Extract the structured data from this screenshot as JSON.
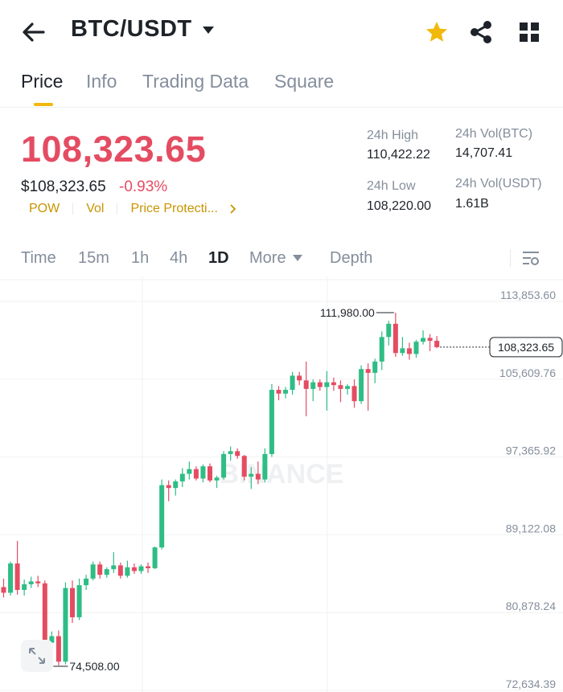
{
  "header": {
    "pair": "BTC/USDT",
    "back_icon": "arrow-left-icon",
    "star_icon": "star-icon",
    "share_icon": "share-icon",
    "grid_icon": "grid-icon",
    "star_color": "#f0b90b"
  },
  "tabs": [
    {
      "label": "Price",
      "active": true
    },
    {
      "label": "Info",
      "active": false
    },
    {
      "label": "Trading Data",
      "active": false
    },
    {
      "label": "Square",
      "active": false
    }
  ],
  "ticker": {
    "last_price": "108,323.65",
    "usd_price": "$108,323.65",
    "change_percent": "-0.93%",
    "tags": [
      "POW",
      "Vol",
      "Price Protecti..."
    ],
    "high_label": "24h High",
    "high_value": "110,422.22",
    "low_label": "24h Low",
    "low_value": "108,220.00",
    "vol_btc_label": "24h Vol(BTC)",
    "vol_btc_value": "14,707.41",
    "vol_usdt_label": "24h Vol(USDT)",
    "vol_usdt_value": "1.61B",
    "down_color": "#e44c62",
    "up_color": "#2ebd85",
    "accent_color": "#f0b90b"
  },
  "controls": {
    "intervals": [
      {
        "label": "Time",
        "active": false
      },
      {
        "label": "15m",
        "active": false
      },
      {
        "label": "1h",
        "active": false
      },
      {
        "label": "4h",
        "active": false
      },
      {
        "label": "1D",
        "active": true
      }
    ],
    "more_label": "More",
    "depth_label": "Depth"
  },
  "chart_data": {
    "type": "candlestick",
    "y_axis_labels": [
      "113,853.60",
      "105,609.76",
      "97,365.92",
      "89,122.08",
      "80,878.24",
      "72,634.39"
    ],
    "ylim": [
      72634.39,
      113853.6
    ],
    "high_marker": "111,980.00",
    "low_marker": "74,508.00",
    "current_price": "108,323.65",
    "current_value": 108323.65,
    "watermark": "BINANCE",
    "candles": [
      {
        "o": 82900,
        "h": 83800,
        "l": 81800,
        "c": 82300
      },
      {
        "o": 82300,
        "h": 85600,
        "l": 82000,
        "c": 85400
      },
      {
        "o": 85400,
        "h": 87800,
        "l": 82100,
        "c": 82600
      },
      {
        "o": 82600,
        "h": 83700,
        "l": 82000,
        "c": 83200
      },
      {
        "o": 83200,
        "h": 84000,
        "l": 82800,
        "c": 83500
      },
      {
        "o": 83500,
        "h": 84100,
        "l": 82900,
        "c": 83300
      },
      {
        "o": 83300,
        "h": 83600,
        "l": 76400,
        "c": 77000
      },
      {
        "o": 77000,
        "h": 78200,
        "l": 74508,
        "c": 77700
      },
      {
        "o": 77700,
        "h": 78300,
        "l": 74600,
        "c": 75000
      },
      {
        "o": 75000,
        "h": 83400,
        "l": 74700,
        "c": 82800
      },
      {
        "o": 82800,
        "h": 83600,
        "l": 79100,
        "c": 79700
      },
      {
        "o": 79700,
        "h": 83800,
        "l": 79400,
        "c": 83100
      },
      {
        "o": 83100,
        "h": 84200,
        "l": 82600,
        "c": 83800
      },
      {
        "o": 83800,
        "h": 85600,
        "l": 83600,
        "c": 85300
      },
      {
        "o": 85300,
        "h": 85600,
        "l": 83800,
        "c": 84200
      },
      {
        "o": 84200,
        "h": 85000,
        "l": 83900,
        "c": 84800
      },
      {
        "o": 84800,
        "h": 86600,
        "l": 84400,
        "c": 85200
      },
      {
        "o": 85200,
        "h": 85500,
        "l": 83800,
        "c": 84100
      },
      {
        "o": 84100,
        "h": 85700,
        "l": 83900,
        "c": 85000
      },
      {
        "o": 85000,
        "h": 85400,
        "l": 84300,
        "c": 84600
      },
      {
        "o": 84600,
        "h": 85300,
        "l": 84300,
        "c": 85100
      },
      {
        "o": 85100,
        "h": 85500,
        "l": 84400,
        "c": 84900
      },
      {
        "o": 84900,
        "h": 87200,
        "l": 84800,
        "c": 87100
      },
      {
        "o": 87100,
        "h": 94300,
        "l": 86900,
        "c": 93700
      },
      {
        "o": 93700,
        "h": 94200,
        "l": 92000,
        "c": 93400
      },
      {
        "o": 93400,
        "h": 94300,
        "l": 92600,
        "c": 94100
      },
      {
        "o": 94100,
        "h": 95500,
        "l": 93500,
        "c": 94900
      },
      {
        "o": 94900,
        "h": 96200,
        "l": 94300,
        "c": 95400
      },
      {
        "o": 95400,
        "h": 95700,
        "l": 94200,
        "c": 94400
      },
      {
        "o": 94400,
        "h": 95900,
        "l": 94000,
        "c": 95700
      },
      {
        "o": 95700,
        "h": 96000,
        "l": 94000,
        "c": 94200
      },
      {
        "o": 94200,
        "h": 94700,
        "l": 93400,
        "c": 94500
      },
      {
        "o": 94500,
        "h": 97300,
        "l": 94300,
        "c": 97000
      },
      {
        "o": 97000,
        "h": 97800,
        "l": 96300,
        "c": 97300
      },
      {
        "o": 97300,
        "h": 97600,
        "l": 96500,
        "c": 96800
      },
      {
        "o": 96800,
        "h": 96900,
        "l": 94200,
        "c": 94600
      },
      {
        "o": 94600,
        "h": 95600,
        "l": 93300,
        "c": 94900
      },
      {
        "o": 94900,
        "h": 96200,
        "l": 93800,
        "c": 94300
      },
      {
        "o": 94300,
        "h": 97600,
        "l": 94000,
        "c": 97000
      },
      {
        "o": 97000,
        "h": 104400,
        "l": 96700,
        "c": 103800
      },
      {
        "o": 103800,
        "h": 104200,
        "l": 102700,
        "c": 103400
      },
      {
        "o": 103400,
        "h": 104100,
        "l": 102900,
        "c": 103800
      },
      {
        "o": 103800,
        "h": 105700,
        "l": 103300,
        "c": 105300
      },
      {
        "o": 105300,
        "h": 105700,
        "l": 104300,
        "c": 104800
      },
      {
        "o": 104800,
        "h": 106800,
        "l": 101000,
        "c": 103900
      },
      {
        "o": 103900,
        "h": 104900,
        "l": 102600,
        "c": 104600
      },
      {
        "o": 104600,
        "h": 104900,
        "l": 103700,
        "c": 104100
      },
      {
        "o": 104100,
        "h": 105800,
        "l": 101600,
        "c": 104600
      },
      {
        "o": 104600,
        "h": 105100,
        "l": 103700,
        "c": 104300
      },
      {
        "o": 104300,
        "h": 104800,
        "l": 102500,
        "c": 103900
      },
      {
        "o": 103900,
        "h": 104400,
        "l": 103300,
        "c": 104200
      },
      {
        "o": 104200,
        "h": 104900,
        "l": 101900,
        "c": 102600
      },
      {
        "o": 102600,
        "h": 106400,
        "l": 102300,
        "c": 106000
      },
      {
        "o": 106000,
        "h": 106600,
        "l": 101600,
        "c": 105600
      },
      {
        "o": 105600,
        "h": 107100,
        "l": 104500,
        "c": 106800
      },
      {
        "o": 106800,
        "h": 110000,
        "l": 105900,
        "c": 109400
      },
      {
        "o": 109400,
        "h": 111100,
        "l": 108500,
        "c": 110800
      },
      {
        "o": 110800,
        "h": 111980,
        "l": 107300,
        "c": 107700
      },
      {
        "o": 107700,
        "h": 109400,
        "l": 107400,
        "c": 108200
      },
      {
        "o": 108200,
        "h": 108800,
        "l": 107000,
        "c": 107600
      },
      {
        "o": 107600,
        "h": 109100,
        "l": 107200,
        "c": 108900
      },
      {
        "o": 108900,
        "h": 110100,
        "l": 108600,
        "c": 109300
      },
      {
        "o": 109300,
        "h": 109700,
        "l": 107900,
        "c": 109000
      },
      {
        "o": 109000,
        "h": 109500,
        "l": 108220,
        "c": 108323.65
      }
    ]
  }
}
